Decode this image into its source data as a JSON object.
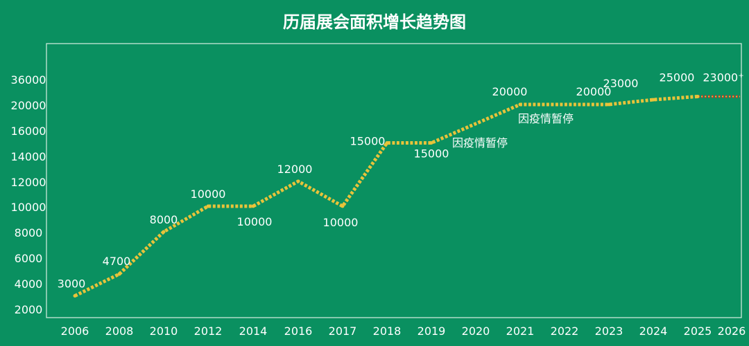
{
  "chart_data": {
    "type": "line",
    "title": "历届展会面积增长趋势图",
    "y_tick_labels": [
      "2000",
      "4000",
      "6000",
      "8000",
      "10000",
      "12000",
      "14000",
      "16000",
      "20000",
      "36000"
    ],
    "x_tick_labels": [
      "2006",
      "2008",
      "2010",
      "2012",
      "2014",
      "2016",
      "2017",
      "2018",
      "2019",
      "2020",
      "2021",
      "2022",
      "2023",
      "2024",
      "2025",
      "2026"
    ],
    "x": [
      "2006",
      "2008",
      "2010",
      "2012",
      "2014",
      "2016",
      "2017",
      "2018",
      "2019",
      "2020",
      "2021",
      "2022",
      "2023",
      "2024",
      "2025",
      "2026"
    ],
    "values": [
      3000,
      4700,
      8000,
      10000,
      10000,
      12000,
      10000,
      15000,
      15000,
      null,
      20000,
      null,
      20000,
      23000,
      25000,
      23000
    ],
    "point_labels": [
      "3000",
      "4700",
      "8000",
      "10000",
      "10000",
      "12000",
      "10000",
      "15000",
      "15000",
      "",
      "20000",
      "",
      "20000",
      "23000",
      "25000",
      "23000⁺"
    ],
    "segment_2025_2026_value": 25000,
    "annotations": [
      "因疫情暂停",
      "因疫情暂停"
    ],
    "colors": {
      "background": "#0a9060",
      "line": "#e8c33a",
      "projection": "#c0392b",
      "text": "#ffffff",
      "frame": "#d8efe3"
    },
    "grid": false,
    "legend": "none"
  }
}
